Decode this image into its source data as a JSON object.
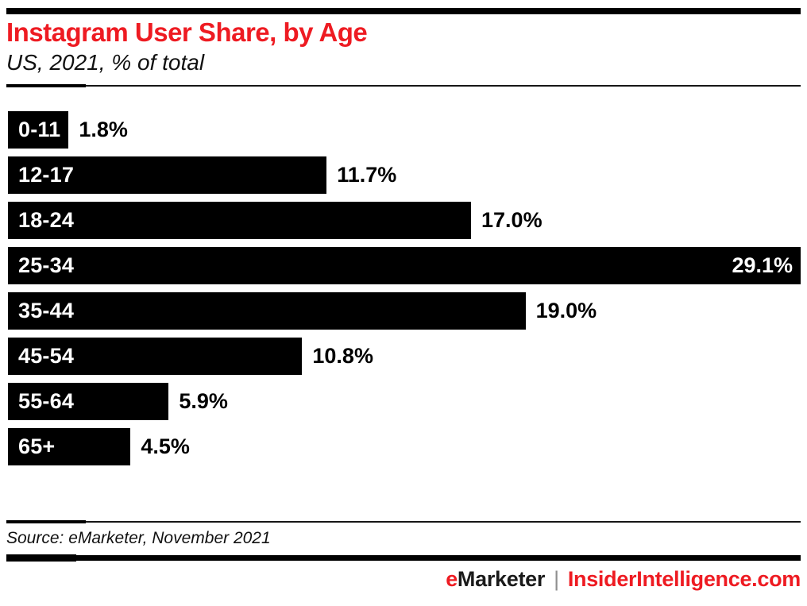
{
  "colors": {
    "accent_red": "#ee1b22",
    "bar_black": "#000000",
    "separator_gray": "#8f8f8f"
  },
  "chart_data": {
    "type": "bar",
    "orientation": "horizontal",
    "title": "Instagram User Share, by Age",
    "subtitle": "US, 2021, % of total",
    "categories": [
      "0-11",
      "12-17",
      "18-24",
      "25-34",
      "35-44",
      "45-54",
      "55-64",
      "65+"
    ],
    "values": [
      1.8,
      11.7,
      17.0,
      29.1,
      19.0,
      10.8,
      5.9,
      4.5
    ],
    "value_labels": [
      "1.8%",
      "11.7%",
      "17.0%",
      "29.1%",
      "19.0%",
      "10.8%",
      "5.9%",
      "4.5%"
    ],
    "value_inside_category": "25-34",
    "xlim": [
      0,
      29.1
    ],
    "bar_color": "#000000",
    "grid": false,
    "legend": "none"
  },
  "footer": {
    "source": "Source: eMarketer, November 2021",
    "logo_e": "e",
    "logo_rest": "Marketer",
    "separator": "|",
    "site": "InsiderIntelligence.com"
  }
}
